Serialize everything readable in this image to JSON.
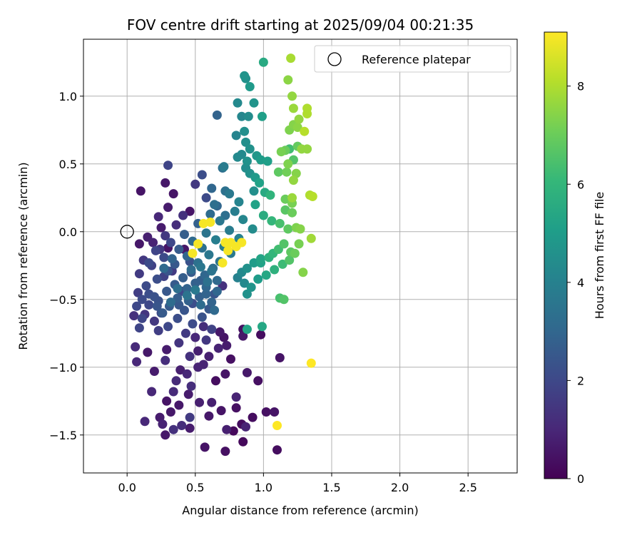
{
  "chart_data": {
    "type": "scatter",
    "title": "FOV centre drift starting at 2025/09/04 00:21:35",
    "xlabel": "Angular distance from reference (arcmin)",
    "ylabel": "Rotation from reference (arcmin)",
    "xlim": [
      -0.32,
      2.86
    ],
    "ylim": [
      -1.78,
      1.42
    ],
    "xticks": [
      "0.0",
      "0.5",
      "1.0",
      "1.5",
      "2.0",
      "2.5"
    ],
    "yticks": [
      "−1.5",
      "−1.0",
      "−0.5",
      "0.0",
      "0.5",
      "1.0"
    ],
    "grid": true,
    "legend": {
      "placement": "top-right",
      "entries": [
        "Reference platepar"
      ]
    },
    "reference_point": {
      "x": 0.0,
      "y": 0.0,
      "name": "Reference platepar"
    },
    "colorbar": {
      "label": "Hours from first FF file",
      "range": [
        0,
        9.1
      ],
      "ticks": [
        "0",
        "2",
        "4",
        "6",
        "8"
      ],
      "colormap": "viridis",
      "colors": [
        "#440154",
        "#482878",
        "#3e4989",
        "#31688e",
        "#26828e",
        "#1f9e89",
        "#35b779",
        "#6ece58",
        "#b5de2b",
        "#fde725"
      ]
    },
    "points": [
      [
        0.85,
        -1.55,
        0.2
      ],
      [
        1.1,
        -1.61,
        0.3
      ],
      [
        0.72,
        -1.62,
        0.4
      ],
      [
        0.57,
        -1.59,
        0.5
      ],
      [
        0.28,
        -1.5,
        0.6
      ],
      [
        0.46,
        -1.45,
        0.7
      ],
      [
        0.73,
        -1.46,
        0.8
      ],
      [
        0.87,
        -1.44,
        0.9
      ],
      [
        0.13,
        -1.4,
        1.0
      ],
      [
        0.92,
        -1.37,
        0.3
      ],
      [
        1.02,
        -1.33,
        0.4
      ],
      [
        1.08,
        -1.33,
        0.5
      ],
      [
        0.32,
        -1.33,
        0.6
      ],
      [
        0.24,
        -1.37,
        0.7
      ],
      [
        0.62,
        -1.26,
        0.8
      ],
      [
        0.8,
        -1.22,
        0.9
      ],
      [
        0.18,
        -1.18,
        1.0
      ],
      [
        0.34,
        -1.18,
        1.1
      ],
      [
        0.47,
        -1.14,
        1.2
      ],
      [
        0.65,
        -1.1,
        0.3
      ],
      [
        0.96,
        -1.1,
        0.4
      ],
      [
        0.72,
        -1.05,
        0.5
      ],
      [
        0.88,
        -1.04,
        0.6
      ],
      [
        0.2,
        -1.03,
        0.7
      ],
      [
        0.39,
        -1.02,
        0.8
      ],
      [
        0.56,
        -0.98,
        0.9
      ],
      [
        0.07,
        -0.96,
        1.0
      ],
      [
        0.28,
        -0.95,
        1.2
      ],
      [
        0.46,
        -0.92,
        1.3
      ],
      [
        0.76,
        -0.94,
        0.4
      ],
      [
        1.12,
        -0.93,
        0.5
      ],
      [
        0.15,
        -0.89,
        0.6
      ],
      [
        0.29,
        -0.87,
        0.7
      ],
      [
        0.52,
        -0.88,
        0.8
      ],
      [
        0.67,
        -0.86,
        0.9
      ],
      [
        0.06,
        -0.85,
        1.1
      ],
      [
        0.38,
        -0.82,
        1.4
      ],
      [
        0.58,
        -0.8,
        1.5
      ],
      [
        0.71,
        -0.78,
        0.5
      ],
      [
        0.85,
        -0.77,
        0.6
      ],
      [
        0.43,
        -0.75,
        1.6
      ],
      [
        0.23,
        -0.73,
        1.7
      ],
      [
        0.62,
        -0.72,
        1.8
      ],
      [
        0.09,
        -0.71,
        1.9
      ],
      [
        0.3,
        -0.7,
        2.0
      ],
      [
        0.48,
        -0.68,
        2.1
      ],
      [
        0.2,
        -0.66,
        1.5
      ],
      [
        0.37,
        -0.64,
        2.2
      ],
      [
        0.55,
        -0.63,
        2.3
      ],
      [
        0.13,
        -0.61,
        1.4
      ],
      [
        0.25,
        -0.6,
        2.1
      ],
      [
        0.42,
        -0.58,
        2.4
      ],
      [
        0.6,
        -0.57,
        2.5
      ],
      [
        0.31,
        -0.55,
        2.6
      ],
      [
        0.16,
        -0.54,
        2.0
      ],
      [
        0.48,
        -0.53,
        2.2
      ],
      [
        0.23,
        -0.51,
        2.3
      ],
      [
        0.37,
        -0.49,
        2.7
      ],
      [
        0.53,
        -0.48,
        2.8
      ],
      [
        0.64,
        -0.46,
        2.4
      ],
      [
        0.08,
        -0.45,
        1.7
      ],
      [
        0.29,
        -0.44,
        2.5
      ],
      [
        0.44,
        -0.42,
        2.9
      ],
      [
        0.58,
        -0.41,
        3.0
      ],
      [
        0.14,
        -0.4,
        2.1
      ],
      [
        0.35,
        -0.39,
        2.6
      ],
      [
        0.5,
        -0.38,
        2.8
      ],
      [
        0.66,
        -0.36,
        3.1
      ],
      [
        0.22,
        -0.35,
        2.2
      ],
      [
        0.41,
        -0.34,
        2.7
      ],
      [
        0.57,
        -0.32,
        3.0
      ],
      [
        0.09,
        -0.31,
        1.6
      ],
      [
        0.3,
        -0.29,
        2.4
      ],
      [
        0.47,
        -0.28,
        3.2
      ],
      [
        0.63,
        -0.27,
        3.3
      ],
      [
        0.18,
        -0.25,
        1.8
      ],
      [
        0.35,
        -0.24,
        2.5
      ],
      [
        0.52,
        -0.23,
        3.4
      ],
      [
        0.68,
        -0.22,
        3.5
      ],
      [
        0.12,
        -0.21,
        1.5
      ],
      [
        0.27,
        -0.19,
        2.1
      ],
      [
        0.44,
        -0.18,
        3.0
      ],
      [
        0.6,
        -0.17,
        3.6
      ],
      [
        0.76,
        -0.16,
        3.7
      ],
      [
        0.21,
        -0.14,
        1.9
      ],
      [
        0.38,
        -0.13,
        2.6
      ],
      [
        0.55,
        -0.12,
        3.4
      ],
      [
        0.71,
        -0.11,
        3.8
      ],
      [
        0.09,
        -0.09,
        0.6
      ],
      [
        0.32,
        -0.08,
        2.0
      ],
      [
        0.48,
        -0.07,
        3.1
      ],
      [
        0.65,
        -0.06,
        3.9
      ],
      [
        0.82,
        -0.05,
        4.0
      ],
      [
        0.15,
        -0.04,
        0.8
      ],
      [
        0.28,
        -0.03,
        1.5
      ],
      [
        0.42,
        -0.02,
        2.7
      ],
      [
        0.58,
        -0.01,
        3.5
      ],
      [
        0.75,
        0.01,
        3.8
      ],
      [
        0.92,
        0.02,
        4.4
      ],
      [
        0.25,
        0.03,
        0.7
      ],
      [
        0.36,
        0.05,
        1.2
      ],
      [
        0.52,
        0.06,
        2.8
      ],
      [
        0.68,
        0.08,
        3.6
      ],
      [
        0.85,
        0.09,
        4.2
      ],
      [
        0.23,
        0.11,
        1.0
      ],
      [
        0.41,
        0.12,
        1.3
      ],
      [
        0.61,
        0.13,
        3.2
      ],
      [
        0.79,
        0.15,
        3.9
      ],
      [
        0.3,
        0.18,
        0.7
      ],
      [
        0.46,
        0.15,
        0.5
      ],
      [
        0.64,
        0.2,
        3.3
      ],
      [
        0.82,
        0.22,
        4.1
      ],
      [
        0.58,
        0.25,
        2.1
      ],
      [
        0.75,
        0.28,
        3.7
      ],
      [
        0.93,
        0.3,
        4.5
      ],
      [
        0.1,
        0.3,
        0.5
      ],
      [
        0.34,
        0.28,
        0.5
      ],
      [
        0.28,
        0.36,
        0.6
      ],
      [
        0.5,
        0.35,
        1.5
      ],
      [
        0.62,
        0.32,
        3.0
      ],
      [
        0.3,
        0.49,
        1.9
      ],
      [
        0.55,
        0.42,
        2.2
      ],
      [
        0.71,
        0.48,
        3.8
      ],
      [
        0.88,
        0.52,
        4.6
      ],
      [
        0.98,
        0.53,
        5.0
      ],
      [
        1.03,
        0.52,
        5.1
      ],
      [
        0.81,
        0.55,
        4.3
      ],
      [
        1.11,
        0.44,
        6.8
      ],
      [
        1.13,
        0.59,
        7.2
      ],
      [
        1.17,
        0.44,
        7.1
      ],
      [
        1.24,
        0.43,
        7.4
      ],
      [
        1.28,
        0.61,
        7.6
      ],
      [
        1.32,
        0.61,
        7.6
      ],
      [
        1.34,
        0.27,
        8.0
      ],
      [
        1.36,
        0.26,
        8.0
      ],
      [
        1.35,
        -0.05,
        7.8
      ],
      [
        1.29,
        -0.3,
        7.4
      ],
      [
        1.24,
        0.03,
        7.3
      ],
      [
        1.27,
        0.02,
        7.4
      ],
      [
        1.21,
        0.21,
        7.2
      ],
      [
        1.16,
        0.24,
        7.0
      ],
      [
        1.05,
        0.27,
        5.9
      ],
      [
        1.01,
        0.29,
        5.5
      ],
      [
        0.97,
        0.36,
        5.2
      ],
      [
        0.94,
        0.4,
        4.9
      ],
      [
        0.9,
        0.43,
        4.6
      ],
      [
        0.87,
        0.47,
        4.4
      ],
      [
        0.94,
        0.2,
        5.2
      ],
      [
        1.0,
        0.12,
        5.6
      ],
      [
        1.06,
        0.08,
        6.0
      ],
      [
        1.12,
        0.06,
        6.4
      ],
      [
        1.18,
        0.02,
        6.8
      ],
      [
        1.15,
        -0.09,
        6.6
      ],
      [
        1.11,
        -0.13,
        6.3
      ],
      [
        1.07,
        -0.16,
        6.0
      ],
      [
        1.04,
        -0.19,
        5.8
      ],
      [
        0.98,
        -0.2,
        5.3
      ],
      [
        0.93,
        -0.23,
        5.0
      ],
      [
        0.88,
        -0.27,
        4.6
      ],
      [
        0.84,
        -0.3,
        4.3
      ],
      [
        0.81,
        -0.34,
        4.0
      ],
      [
        0.86,
        -0.38,
        4.3
      ],
      [
        0.91,
        -0.41,
        4.7
      ],
      [
        0.88,
        -0.46,
        4.6
      ],
      [
        0.96,
        -0.35,
        5.0
      ],
      [
        1.02,
        -0.32,
        5.4
      ],
      [
        1.08,
        -0.28,
        5.8
      ],
      [
        1.14,
        -0.24,
        6.2
      ],
      [
        1.19,
        -0.21,
        6.6
      ],
      [
        1.2,
        -0.15,
        6.8
      ],
      [
        1.12,
        -0.49,
        6.4
      ],
      [
        1.15,
        -0.5,
        6.6
      ],
      [
        1.23,
        -0.16,
        7.0
      ],
      [
        1.26,
        -0.09,
        7.2
      ],
      [
        1.21,
        0.14,
        7.0
      ],
      [
        1.16,
        0.16,
        6.7
      ],
      [
        0.98,
        -0.23,
        5.2
      ],
      [
        0.88,
        -0.72,
        5.3
      ],
      [
        0.99,
        -0.7,
        5.4
      ],
      [
        0.85,
        -0.72,
        0.4
      ],
      [
        0.98,
        -0.76,
        0.3
      ],
      [
        1.19,
        0.61,
        6.3
      ],
      [
        1.22,
        0.53,
        6.6
      ],
      [
        1.25,
        0.63,
        6.9
      ],
      [
        1.19,
        0.75,
        7.3
      ],
      [
        1.22,
        0.79,
        7.4
      ],
      [
        1.25,
        0.77,
        7.5
      ],
      [
        1.26,
        0.83,
        7.6
      ],
      [
        1.22,
        0.91,
        7.7
      ],
      [
        1.21,
        1.0,
        7.6
      ],
      [
        1.18,
        1.12,
        7.5
      ],
      [
        1.2,
        1.28,
        7.9
      ],
      [
        1.32,
        0.91,
        8.0
      ],
      [
        1.32,
        0.87,
        8.0
      ],
      [
        1.3,
        0.74,
        8.1
      ],
      [
        1.36,
        0.26,
        8.1
      ],
      [
        1.21,
        0.25,
        7.7
      ],
      [
        1.22,
        0.38,
        7.6
      ],
      [
        1.18,
        0.5,
        7.3
      ],
      [
        1.16,
        0.6,
        7.0
      ],
      [
        1.0,
        1.25,
        5.5
      ],
      [
        0.9,
        1.07,
        4.9
      ],
      [
        0.86,
        1.15,
        4.7
      ],
      [
        0.87,
        1.13,
        4.6
      ],
      [
        0.81,
        0.95,
        4.3
      ],
      [
        0.84,
        0.85,
        4.2
      ],
      [
        0.89,
        0.85,
        4.4
      ],
      [
        0.93,
        0.95,
        4.7
      ],
      [
        0.99,
        0.85,
        5.1
      ],
      [
        0.66,
        0.86,
        2.9
      ],
      [
        0.86,
        0.74,
        4.5
      ],
      [
        0.8,
        0.71,
        4.1
      ],
      [
        0.87,
        0.66,
        4.5
      ],
      [
        0.9,
        0.61,
        4.6
      ],
      [
        0.84,
        0.57,
        4.3
      ],
      [
        0.95,
        0.56,
        4.8
      ],
      [
        0.72,
        0.3,
        3.4
      ],
      [
        0.75,
        0.28,
        3.5
      ],
      [
        0.66,
        0.19,
        3.0
      ],
      [
        0.72,
        0.12,
        3.3
      ],
      [
        0.7,
        0.47,
        3.3
      ],
      [
        0.56,
        0.06,
        9.0
      ],
      [
        0.61,
        0.07,
        9.0
      ],
      [
        0.52,
        -0.09,
        9.0
      ],
      [
        0.48,
        -0.16,
        9.0
      ],
      [
        0.7,
        -0.23,
        9.0
      ],
      [
        0.72,
        -0.08,
        9.0
      ],
      [
        0.76,
        -0.08,
        9.0
      ],
      [
        0.74,
        -0.14,
        9.0
      ],
      [
        0.8,
        -0.11,
        9.0
      ],
      [
        0.84,
        -0.08,
        9.0
      ],
      [
        1.1,
        -1.43,
        9.1
      ],
      [
        1.35,
        -0.97,
        9.1
      ],
      [
        0.38,
        -0.54,
        2.5
      ],
      [
        0.4,
        -0.44,
        2.0
      ],
      [
        0.27,
        -0.33,
        1.8
      ],
      [
        0.33,
        -0.29,
        1.6
      ],
      [
        0.2,
        -0.48,
        2.3
      ],
      [
        0.47,
        -0.3,
        2.6
      ],
      [
        0.54,
        -0.36,
        2.7
      ],
      [
        0.62,
        -0.52,
        2.9
      ],
      [
        0.66,
        -0.44,
        3.0
      ],
      [
        0.7,
        -0.4,
        1.3
      ],
      [
        0.64,
        -0.58,
        3.1
      ],
      [
        0.56,
        -0.7,
        1.2
      ],
      [
        0.5,
        -0.78,
        1.0
      ],
      [
        0.68,
        -0.74,
        0.6
      ],
      [
        0.73,
        -0.84,
        0.7
      ],
      [
        0.6,
        -0.92,
        0.8
      ],
      [
        0.52,
        -1.0,
        0.9
      ],
      [
        0.44,
        -1.05,
        1.0
      ],
      [
        0.36,
        -1.1,
        1.1
      ],
      [
        0.29,
        -1.25,
        0.5
      ],
      [
        0.38,
        -1.28,
        0.6
      ],
      [
        0.45,
        -1.2,
        0.7
      ],
      [
        0.53,
        -1.26,
        0.8
      ],
      [
        0.6,
        -1.36,
        0.6
      ],
      [
        0.69,
        -1.32,
        0.5
      ],
      [
        0.8,
        -1.3,
        0.4
      ],
      [
        0.84,
        -1.42,
        0.3
      ],
      [
        0.78,
        -1.47,
        0.2
      ],
      [
        0.46,
        -1.37,
        1.6
      ],
      [
        0.4,
        -1.43,
        1.2
      ],
      [
        0.34,
        -1.46,
        1.3
      ],
      [
        0.26,
        -1.42,
        0.9
      ],
      [
        0.58,
        -0.46,
        2.9
      ],
      [
        0.05,
        -0.62,
        1.3
      ],
      [
        0.07,
        -0.55,
        2.0
      ],
      [
        0.16,
        -0.23,
        2.1
      ],
      [
        0.24,
        -0.13,
        1.5
      ],
      [
        0.3,
        -0.12,
        0.5
      ],
      [
        0.19,
        -0.08,
        0.9
      ],
      [
        0.42,
        -0.13,
        0.6
      ],
      [
        0.46,
        -0.22,
        2.3
      ],
      [
        0.33,
        -0.2,
        2.9
      ],
      [
        0.27,
        -0.27,
        3.1
      ],
      [
        0.37,
        -0.42,
        3.3
      ],
      [
        0.45,
        -0.51,
        2.8
      ],
      [
        0.54,
        -0.54,
        3.2
      ],
      [
        0.59,
        -0.37,
        3.4
      ],
      [
        0.62,
        -0.29,
        3.5
      ],
      [
        0.54,
        -0.26,
        3.6
      ],
      [
        0.5,
        -0.43,
        3.7
      ],
      [
        0.44,
        -0.47,
        3.5
      ],
      [
        0.32,
        -0.52,
        3.2
      ],
      [
        0.26,
        -0.6,
        2.6
      ],
      [
        0.22,
        -0.55,
        2.4
      ],
      [
        0.16,
        -0.46,
        2.2
      ],
      [
        0.11,
        -0.5,
        2.1
      ],
      [
        0.11,
        -0.64,
        1.9
      ]
    ]
  }
}
